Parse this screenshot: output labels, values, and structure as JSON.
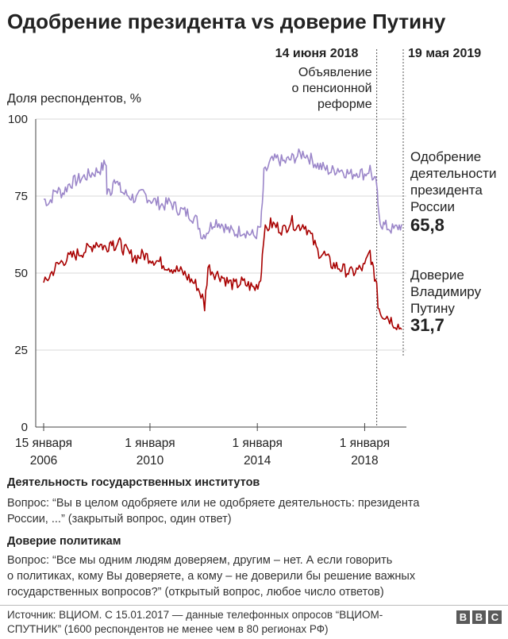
{
  "chart_data": {
    "type": "line",
    "title": "Одобрение президента vs доверие Путину",
    "ylabel": "Доля респондентов, %",
    "ylim": [
      0,
      100
    ],
    "yticks": [
      "100",
      "75",
      "50",
      "25",
      "0"
    ],
    "xticks": [
      {
        "line1": "15 января",
        "line2": "2006",
        "date": "2006-01-15"
      },
      {
        "line1": "1 января",
        "line2": "2010",
        "date": "2010-01-01"
      },
      {
        "line1": "1 января",
        "line2": "2014",
        "date": "2014-01-01"
      },
      {
        "line1": "1 января",
        "line2": "2018",
        "date": "2018-01-01"
      }
    ],
    "grid": true,
    "annotations": [
      {
        "date": "2018-06-14",
        "label": "14 июня 2018",
        "text": [
          "Объявление",
          "о пенсионной",
          "реформе"
        ]
      },
      {
        "date": "2019-05-19",
        "label": "19 мая 2019"
      }
    ],
    "series": [
      {
        "name": "Одобрение деятельности президента России",
        "label_lines": [
          "Одобрение",
          "деятельности",
          "президента",
          "России"
        ],
        "last_value": "65,8",
        "color": "#9b86c9",
        "points": [
          [
            "2006-01-15",
            74
          ],
          [
            "2006-04-01",
            73
          ],
          [
            "2006-07-01",
            77
          ],
          [
            "2006-10-01",
            76
          ],
          [
            "2007-01-01",
            79
          ],
          [
            "2007-04-01",
            80
          ],
          [
            "2007-07-01",
            81
          ],
          [
            "2007-10-01",
            82
          ],
          [
            "2008-01-01",
            83
          ],
          [
            "2008-03-15",
            84
          ],
          [
            "2008-05-15",
            86
          ],
          [
            "2008-05-25",
            76
          ],
          [
            "2008-08-01",
            77
          ],
          [
            "2008-09-01",
            82
          ],
          [
            "2008-11-01",
            78
          ],
          [
            "2009-01-01",
            76
          ],
          [
            "2009-04-01",
            75
          ],
          [
            "2009-07-01",
            74
          ],
          [
            "2009-10-01",
            76
          ],
          [
            "2010-01-01",
            74
          ],
          [
            "2010-04-01",
            73
          ],
          [
            "2010-07-01",
            72
          ],
          [
            "2010-10-01",
            73
          ],
          [
            "2011-01-01",
            71
          ],
          [
            "2011-04-01",
            70
          ],
          [
            "2011-07-01",
            69
          ],
          [
            "2011-10-01",
            67
          ],
          [
            "2011-12-15",
            62
          ],
          [
            "2012-03-01",
            64
          ],
          [
            "2012-06-01",
            67
          ],
          [
            "2012-09-01",
            66
          ],
          [
            "2012-12-01",
            64
          ],
          [
            "2013-03-01",
            63
          ],
          [
            "2013-06-01",
            64
          ],
          [
            "2013-09-01",
            63
          ],
          [
            "2013-12-01",
            62
          ],
          [
            "2014-02-15",
            65
          ],
          [
            "2014-03-10",
            72
          ],
          [
            "2014-04-01",
            82
          ],
          [
            "2014-07-01",
            86
          ],
          [
            "2014-10-01",
            87
          ],
          [
            "2015-01-01",
            86
          ],
          [
            "2015-04-01",
            87
          ],
          [
            "2015-07-01",
            88
          ],
          [
            "2015-10-01",
            89
          ],
          [
            "2016-01-01",
            87
          ],
          [
            "2016-04-01",
            85
          ],
          [
            "2016-07-01",
            84
          ],
          [
            "2016-10-01",
            83
          ],
          [
            "2017-01-01",
            84
          ],
          [
            "2017-04-01",
            83
          ],
          [
            "2017-07-01",
            82
          ],
          [
            "2017-10-01",
            83
          ],
          [
            "2018-01-01",
            82
          ],
          [
            "2018-03-15",
            84
          ],
          [
            "2018-05-01",
            80
          ],
          [
            "2018-06-14",
            79
          ],
          [
            "2018-07-01",
            71
          ],
          [
            "2018-08-15",
            66
          ],
          [
            "2018-11-01",
            65
          ],
          [
            "2019-02-01",
            64
          ],
          [
            "2019-04-01",
            65
          ],
          [
            "2019-05-19",
            65.8
          ]
        ]
      },
      {
        "name": "Доверие Владимиру Путину",
        "label_lines": [
          "Доверие",
          "Владимиру",
          "Путину"
        ],
        "last_value": "31,7",
        "color": "#a80000",
        "points": [
          [
            "2006-01-15",
            46
          ],
          [
            "2006-04-01",
            49
          ],
          [
            "2006-07-01",
            52
          ],
          [
            "2006-10-01",
            54
          ],
          [
            "2007-01-01",
            55
          ],
          [
            "2007-04-01",
            56
          ],
          [
            "2007-07-01",
            57
          ],
          [
            "2007-10-01",
            58
          ],
          [
            "2008-01-01",
            60
          ],
          [
            "2008-03-15",
            59
          ],
          [
            "2008-05-15",
            58
          ],
          [
            "2008-08-01",
            61
          ],
          [
            "2008-09-01",
            59
          ],
          [
            "2008-11-01",
            60
          ],
          [
            "2009-01-01",
            58
          ],
          [
            "2009-04-01",
            56
          ],
          [
            "2009-07-01",
            55
          ],
          [
            "2009-10-01",
            56
          ],
          [
            "2010-01-01",
            55
          ],
          [
            "2010-04-01",
            54
          ],
          [
            "2010-07-01",
            53
          ],
          [
            "2010-10-01",
            52
          ],
          [
            "2011-01-01",
            51
          ],
          [
            "2011-04-01",
            50
          ],
          [
            "2011-07-01",
            48
          ],
          [
            "2011-10-01",
            46
          ],
          [
            "2011-12-15",
            42
          ],
          [
            "2012-01-15",
            39
          ],
          [
            "2012-03-01",
            52
          ],
          [
            "2012-06-01",
            50
          ],
          [
            "2012-09-01",
            49
          ],
          [
            "2012-12-01",
            47
          ],
          [
            "2013-03-01",
            46
          ],
          [
            "2013-06-01",
            47
          ],
          [
            "2013-09-01",
            46
          ],
          [
            "2013-12-01",
            45
          ],
          [
            "2014-02-15",
            48
          ],
          [
            "2014-03-10",
            56
          ],
          [
            "2014-04-01",
            63
          ],
          [
            "2014-07-01",
            66
          ],
          [
            "2014-10-01",
            65
          ],
          [
            "2015-01-01",
            64
          ],
          [
            "2015-04-01",
            67
          ],
          [
            "2015-07-01",
            65
          ],
          [
            "2015-10-01",
            66
          ],
          [
            "2016-01-01",
            62
          ],
          [
            "2016-04-01",
            57
          ],
          [
            "2016-07-01",
            56
          ],
          [
            "2016-10-01",
            53
          ],
          [
            "2017-01-01",
            52
          ],
          [
            "2017-04-01",
            51
          ],
          [
            "2017-07-01",
            50
          ],
          [
            "2017-10-01",
            51
          ],
          [
            "2018-01-01",
            52
          ],
          [
            "2018-03-15",
            57
          ],
          [
            "2018-05-01",
            50
          ],
          [
            "2018-06-14",
            47
          ],
          [
            "2018-07-01",
            40
          ],
          [
            "2018-08-15",
            37
          ],
          [
            "2018-11-01",
            36
          ],
          [
            "2019-02-01",
            34
          ],
          [
            "2019-04-01",
            33
          ],
          [
            "2019-05-19",
            31.7
          ]
        ]
      }
    ]
  },
  "notes": {
    "section1_title": "Деятельность государственных институтов",
    "section1_line1": "Вопрос: “Вы в целом одобряете или не одобряете деятельность: президента",
    "section1_line2": "России, ...” (закрытый вопрос, один ответ)",
    "section2_title": "Доверие политикам",
    "section2_line1": "Вопрос: “Все мы одним людям доверяем, другим – нет. А если говорить",
    "section2_line2": "о политиках, кому Вы доверяете, а кому – не доверили бы решение важных",
    "section2_line3": "государственных вопросов?” (открытый вопрос, любое число ответов)"
  },
  "footer": {
    "source_line1": "Источник: ВЦИОМ. С 15.01.2017 — данные телефонных  опросов “ВЦИОМ-",
    "source_line2": "СПУТНИК” (1600 респондентов не менее чем в 80 регионах РФ)",
    "logo_letters": [
      "B",
      "B",
      "C"
    ]
  }
}
